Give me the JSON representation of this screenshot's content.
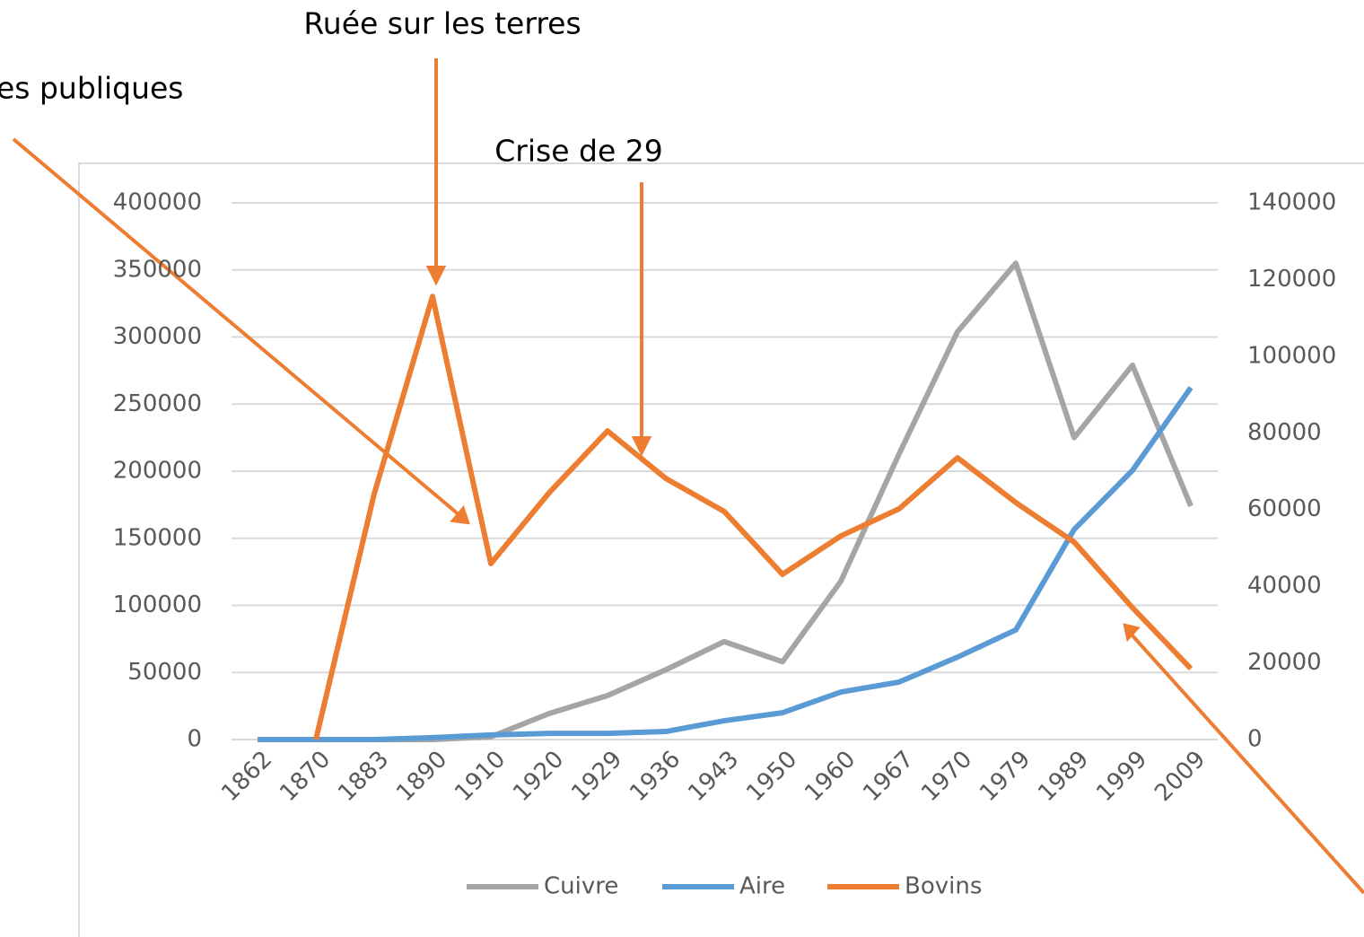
{
  "chart_data": {
    "type": "line",
    "categories": [
      "1862",
      "1870",
      "1883",
      "1890",
      "1910",
      "1920",
      "1929",
      "1936",
      "1943",
      "1950",
      "1960",
      "1967",
      "1970",
      "1979",
      "1989",
      "1999",
      "2009"
    ],
    "series": [
      {
        "name": "Cuivre",
        "color": "#a5a5a5",
        "values": [
          0,
          0,
          0,
          0,
          2000,
          19400,
          32800,
          52000,
          73000,
          58000,
          118000,
          213000,
          304000,
          355000,
          225000,
          279000,
          174000
        ]
      },
      {
        "name": "Aire",
        "color": "#5b9bd5",
        "axis": "y2",
        "values": [
          0,
          0,
          0,
          500,
          1200,
          1600,
          1600,
          2100,
          4900,
          7000,
          12400,
          15000,
          21500,
          28600,
          54800,
          70200,
          91800
        ]
      },
      {
        "name": "Bovins",
        "color": "#ed7d31",
        "axis": "y2",
        "values": [
          null,
          0,
          64100,
          115600,
          45900,
          64400,
          80500,
          68100,
          59500,
          43100,
          53100,
          60200,
          73500,
          61800,
          51500,
          34400,
          18500
        ]
      }
    ],
    "ylim": [
      0,
      400000
    ],
    "yticks": [
      0,
      50000,
      100000,
      150000,
      200000,
      250000,
      300000,
      350000,
      400000
    ],
    "y2lim": [
      0,
      140000
    ],
    "y2ticks": [
      0,
      20000,
      40000,
      60000,
      80000,
      100000,
      120000,
      140000
    ],
    "grid": true,
    "legend": "bottom",
    "annotations": [
      "Ruée sur les terres",
      "es publiques",
      "Crise de 29"
    ]
  }
}
